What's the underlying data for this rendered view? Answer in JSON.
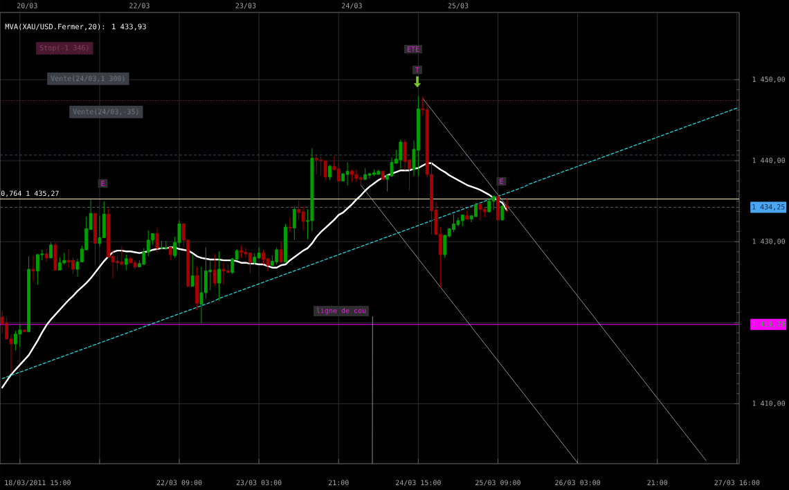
{
  "chart_data": {
    "type": "candlestick",
    "categories": [
      null,
      null,
      null,
      null,
      null,
      null,
      null,
      null,
      "18/03/2011 15:00",
      null,
      null,
      null,
      null,
      null,
      null,
      null,
      null,
      null,
      null,
      null,
      null,
      null,
      null,
      null,
      null,
      null,
      null,
      null,
      null,
      null,
      null,
      null,
      null,
      null,
      null,
      null,
      null,
      null,
      null,
      null,
      "22/03 09:00",
      null,
      null,
      null,
      null,
      null,
      null,
      null,
      null,
      null,
      null,
      null,
      null,
      null,
      null,
      null,
      null,
      null,
      "23/03 03:00",
      null,
      null,
      null,
      null,
      null,
      null,
      null,
      null,
      null,
      null,
      null,
      null,
      null,
      null,
      null,
      null,
      null,
      "21:00",
      null,
      null,
      null,
      null,
      null,
      null,
      null,
      null,
      null,
      null,
      null,
      null,
      null,
      null,
      null,
      null,
      null,
      "24/03 15:00",
      null,
      null,
      null,
      null,
      null,
      null,
      null,
      null,
      null,
      null,
      null,
      null,
      null,
      null,
      null,
      null,
      null,
      "25/03 09:00",
      null,
      null,
      null,
      null,
      null,
      null,
      null,
      null,
      null,
      null,
      null,
      null,
      null,
      null,
      null,
      null,
      null,
      "26/03 03:00",
      null,
      null,
      null,
      null,
      null,
      null,
      null,
      null,
      null,
      null,
      null,
      null,
      null,
      null,
      null,
      null,
      null,
      "21:00",
      null,
      null,
      null,
      null,
      null,
      null,
      null,
      null,
      null,
      null,
      null,
      null,
      null,
      null,
      null,
      null,
      null,
      "27/03 16:00"
    ],
    "ohlc": [
      [
        1420.7,
        1421.4,
        1418.7,
        1419.9
      ],
      [
        1420.0,
        1420.7,
        1417.9,
        1418.0
      ],
      [
        1418.0,
        1418.6,
        1413.7,
        1417.4
      ],
      [
        1417.4,
        1419.0,
        1416.6,
        1418.6
      ],
      [
        1418.6,
        1419.8,
        1417.0,
        1419.1
      ],
      [
        1419.1,
        1419.1,
        1418.9,
        1418.9
      ],
      [
        1418.9,
        1428.2,
        1418.8,
        1426.6
      ],
      [
        1426.6,
        1428.3,
        1425.1,
        1426.4
      ],
      [
        1426.4,
        1428.5,
        1424.7,
        1428.4
      ],
      [
        1428.4,
        1429.0,
        1427.7,
        1428.5
      ],
      [
        1428.5,
        1429.1,
        1427.5,
        1428.0
      ],
      [
        1428.0,
        1429.9,
        1428.0,
        1429.6
      ],
      [
        1429.6,
        1429.9,
        1426.5,
        1426.5
      ],
      [
        1426.5,
        1428.1,
        1426.5,
        1427.4
      ],
      [
        1427.4,
        1428.6,
        1427.2,
        1427.7
      ],
      [
        1427.7,
        1429.1,
        1426.8,
        1427.5
      ],
      [
        1427.7,
        1428.1,
        1426.0,
        1426.6
      ],
      [
        1426.6,
        1427.9,
        1425.7,
        1427.5
      ],
      [
        1427.5,
        1429.5,
        1427.5,
        1429.1
      ],
      [
        1429.0,
        1433.1,
        1429.0,
        1431.6
      ],
      [
        1431.5,
        1435.2,
        1431.5,
        1433.5
      ],
      [
        1433.5,
        1433.5,
        1427.2,
        1429.8
      ],
      [
        1429.8,
        1433.2,
        1429.4,
        1430.5
      ],
      [
        1430.5,
        1435.0,
        1430.5,
        1433.4
      ],
      [
        1433.4,
        1434.1,
        1428.1,
        1428.1
      ],
      [
        1428.2,
        1429.0,
        1425.4,
        1427.5
      ],
      [
        1427.6,
        1428.2,
        1426.5,
        1427.4
      ],
      [
        1427.5,
        1429.4,
        1427.2,
        1427.2
      ],
      [
        1427.2,
        1428.4,
        1426.5,
        1427.9
      ],
      [
        1427.9,
        1428.1,
        1427.3,
        1427.4
      ],
      [
        1427.4,
        1427.7,
        1426.6,
        1426.9
      ],
      [
        1426.9,
        1427.7,
        1426.8,
        1427.3
      ],
      [
        1427.2,
        1429.2,
        1427.2,
        1428.7
      ],
      [
        1428.7,
        1431.4,
        1428.2,
        1430.2
      ],
      [
        1430.2,
        1431.0,
        1429.6,
        1431.0
      ],
      [
        1431.0,
        1431.7,
        1428.7,
        1429.2
      ],
      [
        1429.2,
        1430.1,
        1429.1,
        1429.3
      ],
      [
        1429.2,
        1430.1,
        1429.0,
        1429.3
      ],
      [
        1429.3,
        1429.3,
        1427.7,
        1428.4
      ],
      [
        1428.3,
        1430.6,
        1428.0,
        1429.9
      ],
      [
        1429.9,
        1432.6,
        1429.4,
        1432.2
      ],
      [
        1432.2,
        1432.2,
        1429.4,
        1430.2
      ],
      [
        1430.2,
        1430.2,
        1424.4,
        1424.5
      ],
      [
        1424.5,
        1428.5,
        1424.5,
        1425.8
      ],
      [
        1425.8,
        1426.9,
        1421.6,
        1422.4
      ],
      [
        1422.3,
        1426.9,
        1419.9,
        1423.7
      ],
      [
        1423.7,
        1429.3,
        1423.0,
        1426.4
      ],
      [
        1426.3,
        1427.6,
        1424.0,
        1426.5
      ],
      [
        1426.5,
        1428.5,
        1424.5,
        1424.9
      ],
      [
        1424.9,
        1428.8,
        1422.7,
        1426.6
      ],
      [
        1426.6,
        1427.4,
        1424.7,
        1426.4
      ],
      [
        1426.4,
        1427.2,
        1426.2,
        1426.2
      ],
      [
        1426.2,
        1428.0,
        1426.0,
        1427.9
      ],
      [
        1427.8,
        1429.1,
        1427.8,
        1428.9
      ],
      [
        1428.9,
        1429.5,
        1428.0,
        1428.7
      ],
      [
        1428.7,
        1429.2,
        1428.0,
        1428.5
      ],
      [
        1428.6,
        1428.6,
        1426.1,
        1427.4
      ],
      [
        1427.4,
        1428.6,
        1427.2,
        1428.1
      ],
      [
        1428.0,
        1429.3,
        1427.9,
        1428.6
      ],
      [
        1428.6,
        1429.0,
        1427.2,
        1427.8
      ],
      [
        1427.9,
        1428.0,
        1426.4,
        1427.1
      ],
      [
        1427.1,
        1428.3,
        1427.0,
        1427.6
      ],
      [
        1427.5,
        1429.3,
        1427.2,
        1429.0
      ],
      [
        1429.0,
        1430.0,
        1427.5,
        1427.5
      ],
      [
        1427.5,
        1432.2,
        1427.4,
        1431.8
      ],
      [
        1431.8,
        1433.0,
        1431.2,
        1431.7
      ],
      [
        1431.7,
        1434.4,
        1430.2,
        1434.0
      ],
      [
        1434.0,
        1435.1,
        1432.7,
        1433.6
      ],
      [
        1433.7,
        1434.4,
        1431.4,
        1432.5
      ],
      [
        1432.5,
        1434.0,
        1430.3,
        1432.6
      ],
      [
        1432.6,
        1441.5,
        1431.3,
        1440.3
      ],
      [
        1440.3,
        1440.8,
        1438.3,
        1440.1
      ],
      [
        1440.1,
        1440.5,
        1438.1,
        1440.0
      ],
      [
        1440.0,
        1440.0,
        1437.6,
        1438.0
      ],
      [
        1438.0,
        1439.5,
        1437.6,
        1439.3
      ],
      [
        1439.3,
        1440.6,
        1438.8,
        1438.9
      ],
      [
        1439.0,
        1439.7,
        1437.4,
        1437.5
      ],
      [
        1437.5,
        1438.4,
        1437.5,
        1438.4
      ],
      [
        1438.3,
        1439.8,
        1436.9,
        1438.7
      ],
      [
        1438.7,
        1438.9,
        1437.4,
        1438.3
      ],
      [
        1438.3,
        1438.9,
        1437.4,
        1437.8
      ],
      [
        1437.9,
        1438.2,
        1436.9,
        1437.7
      ],
      [
        1437.7,
        1439.1,
        1437.6,
        1438.3
      ],
      [
        1438.2,
        1438.5,
        1437.8,
        1438.4
      ],
      [
        1438.3,
        1438.9,
        1438.1,
        1438.5
      ],
      [
        1438.3,
        1438.9,
        1438.3,
        1438.7
      ],
      [
        1438.7,
        1438.7,
        1437.7,
        1437.7
      ],
      [
        1437.7,
        1438.2,
        1436.2,
        1438.2
      ],
      [
        1438.1,
        1440.4,
        1438.1,
        1439.8
      ],
      [
        1439.7,
        1441.3,
        1439.6,
        1440.2
      ],
      [
        1440.1,
        1442.6,
        1439.0,
        1442.3
      ],
      [
        1442.3,
        1442.6,
        1438.8,
        1439.9
      ],
      [
        1440.1,
        1440.1,
        1436.3,
        1439.0
      ],
      [
        1438.9,
        1442.5,
        1438.1,
        1441.4
      ],
      [
        1441.3,
        1448.0,
        1438.1,
        1446.4
      ],
      [
        1446.4,
        1447.9,
        1445.6,
        1446.3
      ],
      [
        1446.3,
        1447.2,
        1437.9,
        1438.3
      ],
      [
        1438.3,
        1439.9,
        1430.9,
        1433.8
      ],
      [
        1433.9,
        1434.9,
        1430.8,
        1430.9
      ],
      [
        1430.9,
        1431.8,
        1424.3,
        1428.4
      ],
      [
        1428.4,
        1430.8,
        1428.0,
        1430.8
      ],
      [
        1430.7,
        1431.6,
        1430.5,
        1431.6
      ],
      [
        1431.5,
        1433.4,
        1431.2,
        1432.2
      ],
      [
        1432.1,
        1433.0,
        1431.9,
        1432.6
      ],
      [
        1432.6,
        1433.3,
        1431.9,
        1433.3
      ],
      [
        1433.2,
        1433.8,
        1432.7,
        1432.8
      ],
      [
        1432.8,
        1433.2,
        1432.4,
        1433.2
      ],
      [
        1433.1,
        1434.8,
        1433.1,
        1434.6
      ],
      [
        1434.6,
        1434.8,
        1432.6,
        1434.0
      ],
      [
        1434.0,
        1434.2,
        1433.0,
        1433.7
      ],
      [
        1433.7,
        1435.4,
        1433.6,
        1435.0
      ],
      [
        1435.0,
        1435.7,
        1433.9,
        1435.6
      ],
      [
        1435.6,
        1435.7,
        1432.7,
        1432.7
      ],
      [
        1432.7,
        1434.4,
        1432.6,
        1434.4
      ],
      [
        1434.4,
        1435.3,
        1433.6,
        1434.25
      ],
      null,
      null,
      null,
      null,
      null,
      null,
      null,
      null,
      null,
      null,
      null,
      null,
      null,
      null,
      null,
      null,
      null,
      null,
      null,
      null,
      null,
      null,
      null,
      null,
      null,
      null,
      null,
      null,
      null,
      null,
      null,
      null,
      null,
      null,
      null,
      null,
      null,
      null,
      null,
      null,
      null,
      null,
      null,
      null,
      null,
      null,
      null,
      null,
      null,
      null,
      null,
      null
    ],
    "colors": [
      "#a80000",
      "#a80000",
      "#a80000",
      "#00a000",
      "#00a000",
      "#a80000",
      "#00a000",
      "#a80000",
      "#00a000",
      "#00a000",
      "#a80000",
      "#00a000",
      "#a80000",
      "#00a000",
      "#00a000",
      "#a80000",
      "#a80000",
      "#00a000",
      "#00a000",
      "#00a000",
      "#00a000",
      "#a80000",
      "#00a000",
      "#00a000",
      "#a80000",
      "#a80000",
      "#a80000",
      "#a80000",
      "#00a000",
      "#a80000",
      "#a80000",
      "#00a000",
      "#00a000",
      "#00a000",
      "#00a000",
      "#a80000",
      "#00a000",
      "#00a000",
      "#a80000",
      "#00a000",
      "#00a000",
      "#a80000",
      "#a80000",
      "#00a000",
      "#a80000",
      "#00a000",
      "#00a000",
      "#00a000",
      "#a80000",
      "#00a000",
      "#a80000",
      "#a80000",
      "#00a000",
      "#00a000",
      "#a80000",
      "#a80000",
      "#a80000",
      "#00a000",
      "#00a000",
      "#a80000",
      "#a80000",
      "#00a000",
      "#00a000",
      "#a80000",
      "#00a000",
      "#a80000",
      "#00a000",
      "#a80000",
      "#a80000",
      "#00a000",
      "#00a000",
      "#a80000",
      "#a80000",
      "#a80000",
      "#00a000",
      "#a80000",
      "#a80000",
      "#00a000",
      "#00a000",
      "#a80000",
      "#a80000",
      "#a80000",
      "#00a000",
      "#00a000",
      "#00a000",
      "#00a000",
      "#a80000",
      "#00a000",
      "#00a000",
      "#00a000",
      "#00a000",
      "#a80000",
      "#a80000",
      "#00a000",
      "#00a000",
      "#a80000",
      "#a80000",
      "#a80000",
      "#a80000",
      "#a80000",
      "#00a000",
      "#00a000",
      "#00a000",
      "#00a000",
      "#00a000",
      "#a80000",
      "#00a000",
      "#00a000",
      "#a80000",
      "#a80000",
      "#00a000",
      "#00a000",
      "#a80000",
      "#00a000",
      "#a80000",
      null,
      null,
      null,
      null,
      null,
      null,
      null,
      null,
      null,
      null,
      null,
      null,
      null,
      null,
      null,
      null,
      null,
      null,
      null,
      null,
      null,
      null,
      null,
      null,
      null,
      null,
      null,
      null,
      null,
      null,
      null,
      null,
      null,
      null,
      null,
      null,
      null,
      null,
      null,
      null,
      null,
      null,
      null,
      null,
      null,
      null,
      null,
      null,
      null,
      null,
      null,
      null
    ],
    "ylim": [
      1402.6,
      1458.3
    ],
    "yticks": [
      {
        "value": 1410,
        "label": "1 410,00"
      },
      {
        "value": 1420,
        "label": null
      },
      {
        "value": 1430,
        "label": "1 430,00"
      },
      {
        "value": 1440,
        "label": "1 440,00"
      },
      {
        "value": 1450,
        "label": "1 450,00"
      }
    ],
    "grid": true,
    "legend": "top left",
    "series": [
      {
        "type": "line",
        "name": "MVA(XAU/USD.Fermer,20): 1 433,93",
        "color": "#ffffff",
        "values": [
          1412.0,
          1412.8,
          1413.6,
          1414.2,
          1414.8,
          1415.4,
          1416.0,
          1416.9,
          1417.8,
          1418.8,
          1419.7,
          1420.4,
          1421.0,
          1421.6,
          1422.2,
          1422.8,
          1423.3,
          1423.9,
          1424.4,
          1424.9,
          1425.5,
          1426.2,
          1426.9,
          1427.6,
          1428.2,
          1428.7,
          1428.9,
          1428.9,
          1428.8,
          1428.8,
          1428.7,
          1428.6,
          1428.7,
          1428.8,
          1429.0,
          1429.1,
          1429.2,
          1429.2,
          1429.3,
          1429.3,
          1429.1,
          1429.0,
          1428.9,
          1428.6,
          1428.2,
          1428.0,
          1427.9,
          1427.8,
          1427.8,
          1427.8,
          1427.7,
          1427.7,
          1427.7,
          1427.6,
          1427.4,
          1427.4,
          1427.3,
          1427.3,
          1427.2,
          1427.2,
          1427.0,
          1426.8,
          1426.8,
          1427.1,
          1427.2,
          1427.7,
          1428.1,
          1428.5,
          1428.9,
          1429.2,
          1429.8,
          1430.6,
          1431.2,
          1431.7,
          1432.2,
          1432.7,
          1433.3,
          1433.6,
          1434.1,
          1434.6,
          1435.2,
          1435.7,
          1436.3,
          1436.8,
          1437.2,
          1437.6,
          1437.9,
          1438.2,
          1438.4,
          1438.6,
          1438.8,
          1438.8,
          1438.8,
          1439.0,
          1439.1,
          1439.4,
          1439.7,
          1439.7,
          1439.3,
          1438.9,
          1438.6,
          1438.2,
          1437.9,
          1437.6,
          1437.3,
          1437.0,
          1436.8,
          1436.6,
          1436.4,
          1436.1,
          1435.8,
          1435.4,
          1435.1,
          1434.8,
          1433.9,
          null,
          null,
          null,
          null,
          null,
          null,
          null,
          null,
          null,
          null,
          null,
          null,
          null,
          null,
          null,
          null,
          null,
          null,
          null,
          null,
          null,
          null,
          null,
          null,
          null,
          null,
          null,
          null,
          null,
          null,
          null,
          null,
          null,
          null,
          null,
          null,
          null,
          null,
          null,
          null,
          null,
          null,
          null,
          null,
          null,
          null,
          null,
          null,
          null,
          null,
          null,
          null
        ]
      },
      {
        "type": "line",
        "color": "#20d8e0",
        "line_style": "dashed",
        "values": [
          1413.1,
          1413.3,
          1413.5,
          1413.7,
          1413.9,
          1414.1,
          1414.3,
          1414.5,
          1414.7,
          1414.9,
          1415.1,
          1415.3,
          1415.5,
          1415.7,
          1415.9,
          1416.1,
          1416.3,
          1416.5,
          1416.7,
          1416.9,
          1417.1,
          1417.3,
          1417.5,
          1417.7,
          1417.9,
          1418.1,
          1418.3,
          1418.5,
          1418.7,
          1418.9,
          1419.1,
          1419.3,
          1419.5,
          1419.7,
          1419.9,
          1420.1,
          1420.3,
          1420.5,
          1420.7,
          1420.9,
          1421.1,
          1421.3,
          1421.5,
          1421.7,
          1421.9,
          1422.1,
          1422.3,
          1422.5,
          1422.7,
          1423.0,
          1423.2,
          1423.4,
          1423.6,
          1423.8,
          1424.0,
          1424.2,
          1424.4,
          1424.6,
          1424.8,
          1425.0,
          1425.2,
          1425.4,
          1425.6,
          1425.8,
          1426.0,
          1426.2,
          1426.4,
          1426.6,
          1426.8,
          1427.0,
          1427.2,
          1427.4,
          1427.6,
          1427.8,
          1428.0,
          1428.2,
          1428.4,
          1428.6,
          1428.8,
          1429.0,
          1429.2,
          1429.4,
          1429.6,
          1429.8,
          1430.0,
          1430.2,
          1430.4,
          1430.6,
          1430.8,
          1431.0,
          1431.2,
          1431.4,
          1431.6,
          1431.8,
          1432.0,
          1432.2,
          1432.4,
          1432.6,
          1432.8,
          1433.0,
          1433.2,
          1433.4,
          1433.6,
          1433.8,
          1434.0,
          1434.2,
          1434.4,
          1434.6,
          1434.8,
          1435.0,
          1435.2,
          1435.4,
          1435.6,
          1435.8,
          1436.0,
          1436.2,
          1436.4,
          1436.6,
          1436.8,
          1437.1,
          1437.3,
          1437.5,
          1437.7,
          1437.9,
          1438.1,
          1438.3,
          1438.5,
          1438.7,
          1438.9,
          1439.1,
          1439.3,
          1439.5,
          1439.7,
          1439.9,
          1440.1,
          1440.3,
          1440.5,
          1440.7,
          1440.9,
          1441.1,
          1441.3,
          1441.5,
          1441.7,
          1441.9,
          1442.1,
          1442.3,
          1442.5,
          1442.7,
          1442.9,
          1443.1,
          1443.3,
          1443.5,
          1443.7,
          1443.9,
          1444.1,
          1444.3,
          1444.5,
          1444.7,
          1444.9,
          1445.1,
          1445.3,
          1445.5,
          1445.7,
          1445.9,
          1446.1,
          1446.3,
          1446.5
        ]
      },
      {
        "type": "line",
        "color": "#b8b8b8",
        "values": [
          null,
          null,
          null,
          null,
          null,
          null,
          null,
          null,
          null,
          null,
          null,
          null,
          null,
          null,
          null,
          null,
          null,
          null,
          null,
          null,
          null,
          null,
          null,
          null,
          null,
          null,
          null,
          null,
          null,
          null,
          null,
          null,
          null,
          null,
          null,
          null,
          null,
          null,
          null,
          null,
          null,
          null,
          null,
          null,
          null,
          null,
          null,
          null,
          null,
          null,
          null,
          null,
          null,
          null,
          null,
          null,
          null,
          null,
          null,
          null,
          null,
          null,
          null,
          null,
          null,
          null,
          null,
          null,
          null,
          null,
          null,
          null,
          null,
          null,
          null,
          null,
          null,
          null,
          null,
          null,
          null,
          null,
          null,
          null,
          null,
          null,
          null,
          null,
          null,
          null,
          null,
          null,
          null,
          null,
          null,
          1447.7,
          1447.0,
          1446.3,
          1445.6,
          1444.9,
          1444.2,
          1443.5,
          1442.8,
          1442.1,
          1441.4,
          1440.7,
          1440.0,
          1439.3,
          1438.6,
          1437.9,
          1437.2,
          1436.5,
          1435.8,
          1435.1,
          1434.4,
          1433.8,
          1433.1,
          1432.4,
          1431.7,
          1431.0,
          1430.3,
          1429.6,
          1428.9,
          1428.2,
          1427.5,
          1426.8,
          1426.1,
          1425.4,
          1424.7,
          1424.0,
          1423.3,
          1422.6,
          1421.9,
          1421.2,
          1420.5,
          1419.8,
          1419.1,
          1418.4,
          1417.7,
          1417.0,
          1416.3,
          1415.6,
          1414.9,
          1414.2,
          1413.5,
          1412.8,
          1412.1,
          1411.4,
          1410.7,
          1410.0,
          1409.3,
          1408.6,
          1407.9,
          1407.2,
          1406.5,
          1405.8,
          1405.1,
          1404.4,
          1403.7,
          1403.0,
          null,
          null,
          null,
          null,
          null,
          null,
          null
        ]
      },
      {
        "type": "line",
        "color": "#b8b8b8",
        "values": [
          null,
          null,
          null,
          null,
          null,
          null,
          null,
          null,
          null,
          null,
          null,
          null,
          null,
          null,
          null,
          null,
          null,
          null,
          null,
          null,
          null,
          null,
          null,
          null,
          null,
          null,
          null,
          null,
          null,
          null,
          null,
          null,
          null,
          null,
          null,
          null,
          null,
          null,
          null,
          null,
          null,
          null,
          null,
          null,
          null,
          null,
          null,
          null,
          null,
          null,
          null,
          null,
          null,
          null,
          null,
          null,
          null,
          null,
          null,
          null,
          null,
          null,
          null,
          null,
          null,
          null,
          null,
          null,
          null,
          null,
          null,
          null,
          null,
          null,
          null,
          null,
          null,
          null,
          null,
          null,
          null,
          1437.0,
          1436.3,
          1435.6,
          1434.9,
          1434.2,
          1433.5,
          1432.8,
          1432.1,
          1431.4,
          1430.7,
          1430.0,
          1429.3,
          1428.6,
          1427.9,
          1427.2,
          1426.5,
          1425.8,
          1425.1,
          1424.4,
          1423.7,
          1423.0,
          1422.3,
          1421.6,
          1420.9,
          1420.2,
          1419.5,
          1418.8,
          1418.1,
          1417.4,
          1416.7,
          1416.0,
          1415.3,
          1414.6,
          1413.9,
          1413.2,
          1412.5,
          1411.8,
          1411.1,
          1410.4,
          1409.7,
          1409.0,
          1408.3,
          1407.6,
          1406.9,
          1406.2,
          1405.5,
          1404.8,
          1404.1,
          1403.4,
          1402.7,
          null,
          null,
          null,
          null,
          null,
          null,
          null,
          null,
          null,
          null,
          null,
          null,
          null,
          null,
          null,
          null,
          null,
          null,
          null,
          null,
          null,
          null,
          null,
          null,
          null,
          null,
          null,
          null,
          null,
          null,
          null,
          null,
          null,
          null,
          null,
          null
        ]
      }
    ],
    "ref_lines": [
      {
        "axis": "y",
        "value": 1447.4,
        "color": "#6e2448",
        "line_style": "dotted"
      },
      {
        "axis": "y",
        "value": 1440.7,
        "color": "#3e4659",
        "line_style": "dashed"
      },
      {
        "axis": "y",
        "value": 1435.27,
        "label": "0,764 1 435,27",
        "color": "#fff2c4"
      },
      {
        "axis": "y",
        "value": 1434.25,
        "label": "1 434,25",
        "color": "#5a5a5a",
        "line_style": "dashed"
      },
      {
        "axis": "y",
        "value": 1419.79,
        "label": "1 419,79",
        "color": "#ff00ff"
      }
    ],
    "annotations": [
      "Stop(-1 346)",
      "Vente(24/03,1 300)",
      "Vente(24/03,-35)",
      "E",
      "ETE",
      "T",
      "E",
      "ligne de cou",
      "20/03",
      "22/03",
      "23/03",
      "24/03",
      "25/03"
    ]
  }
}
